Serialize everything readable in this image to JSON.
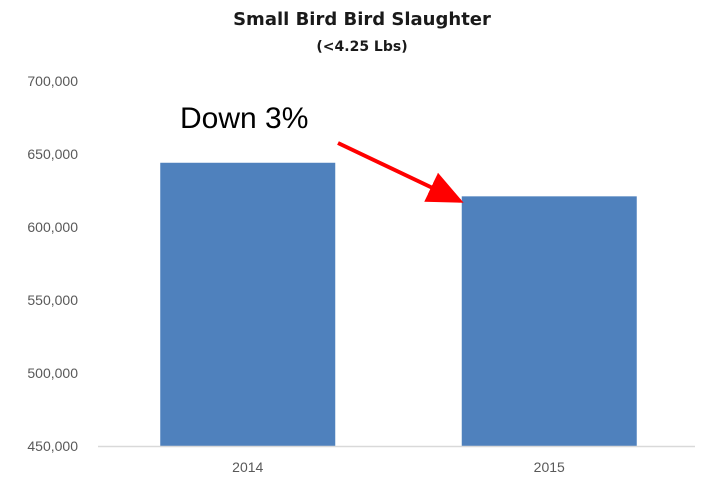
{
  "chart_data": {
    "type": "bar",
    "title": "Small Bird Bird Slaughter",
    "subtitle": "(<4.25 Lbs)",
    "xlabel": "",
    "ylabel": "",
    "categories": [
      "2014",
      "2015"
    ],
    "values": [
      644000,
      621000
    ],
    "ylim": [
      450000,
      700000
    ],
    "yticks": [
      450000,
      500000,
      550000,
      600000,
      650000,
      700000
    ],
    "ytick_labels": [
      "450,000",
      "500,000",
      "550,000",
      "600,000",
      "650,000",
      "700,000"
    ],
    "grid": false,
    "legend": "none",
    "annotation": {
      "text": "Down 3%",
      "arrow_from_category": "2014",
      "arrow_to_category": "2015"
    },
    "colors": {
      "bar": "#4f81bd",
      "arrow": "#ff0000",
      "axis": "#d9d9d9"
    }
  }
}
